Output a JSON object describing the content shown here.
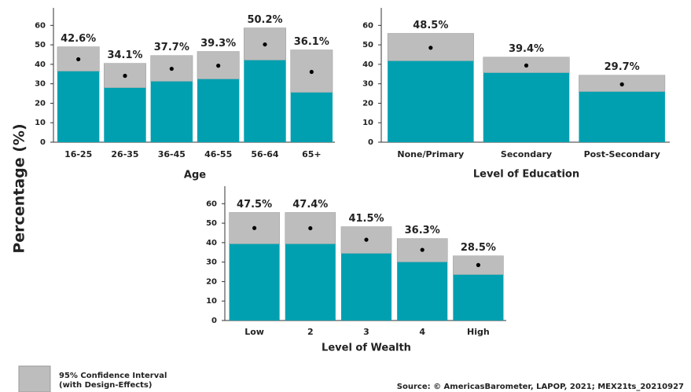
{
  "ylabel": "Percentage (%)",
  "legend": {
    "label": [
      "95% Confidence Interval",
      "(with Design-Effects)"
    ],
    "color": "#bdbdbd"
  },
  "source": "Source: © AmericasBarometer, LAPOP, 2021; MEX21ts_20210927",
  "chart_data": [
    {
      "type": "bar",
      "xlabel": "Age",
      "categories": [
        "16-25",
        "26-35",
        "36-45",
        "46-55",
        "56-64",
        "65+"
      ],
      "values": [
        42.6,
        34.1,
        37.7,
        39.3,
        50.2,
        36.1
      ],
      "value_labels": [
        "42.6%",
        "34.1%",
        "37.7%",
        "39.3%",
        "50.2%",
        "36.1%"
      ],
      "ci_lower": [
        36.4,
        27.9,
        31.2,
        32.4,
        42.1,
        25.5
      ],
      "ci_upper": [
        49,
        40.5,
        44.5,
        46.6,
        58.7,
        47.4
      ],
      "color": "#00a0b0",
      "ci_color": "#bdbdbd",
      "ylim": [
        0,
        69
      ],
      "yticks": [
        0,
        10,
        20,
        30,
        40,
        50,
        60
      ]
    },
    {
      "type": "bar",
      "xlabel": "Level of Education",
      "categories": [
        "None/Primary",
        "Secondary",
        "Post-Secondary"
      ],
      "values": [
        48.5,
        39.4,
        29.7
      ],
      "value_labels": [
        "48.5%",
        "39.4%",
        "29.7%"
      ],
      "ci_lower": [
        41.7,
        35.6,
        25.9
      ],
      "ci_upper": [
        55.9,
        43.7,
        34.4
      ],
      "color": "#00a0b0",
      "ci_color": "#bdbdbd",
      "ylim": [
        0,
        69
      ],
      "yticks": [
        0,
        10,
        20,
        30,
        40,
        50,
        60
      ]
    },
    {
      "type": "bar",
      "xlabel": "Level of Wealth",
      "categories": [
        "Low",
        "2",
        "3",
        "4",
        "High"
      ],
      "values": [
        47.5,
        47.4,
        41.5,
        36.3,
        28.5
      ],
      "value_labels": [
        "47.5%",
        "47.4%",
        "41.5%",
        "36.3%",
        "28.5%"
      ],
      "ci_lower": [
        39.3,
        39.3,
        34.4,
        30,
        23.5
      ],
      "ci_upper": [
        55.5,
        55.5,
        48.2,
        42.1,
        33.2
      ],
      "color": "#00a0b0",
      "ci_color": "#bdbdbd",
      "ylim": [
        0,
        69
      ],
      "yticks": [
        0,
        10,
        20,
        30,
        40,
        50,
        60
      ]
    }
  ]
}
